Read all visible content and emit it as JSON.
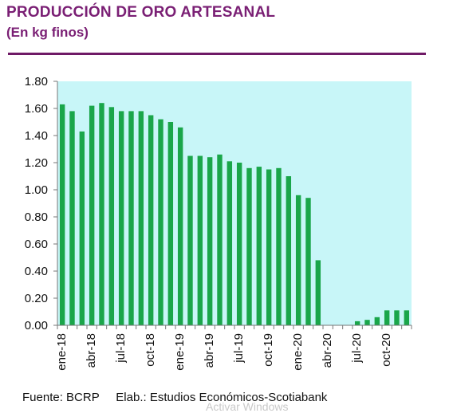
{
  "title": "PRODUCCIÓN DE ORO ARTESANAL",
  "subtitle": "(En kg finos)",
  "footer": {
    "source": "Fuente: BCRP",
    "elaboration": "Elab.: Estudios Económicos-Scotiabank"
  },
  "watermark": "Activar Windows",
  "colors": {
    "bar": "#1aa64a",
    "plot_background": "#c8f6f8",
    "title": "#7a1f74"
  },
  "chart_data": {
    "type": "bar",
    "title": "PRODUCCIÓN DE ORO ARTESANAL",
    "subtitle": "(En kg finos)",
    "xlabel": "",
    "ylabel": "",
    "ylim": [
      0,
      1.8
    ],
    "yticks": [
      "0.00",
      "0.20",
      "0.40",
      "0.60",
      "0.80",
      "1.00",
      "1.20",
      "1.40",
      "1.60",
      "1.80"
    ],
    "grid": false,
    "legend": "none",
    "categories": [
      "ene-18",
      "feb-18",
      "mar-18",
      "abr-18",
      "may-18",
      "jun-18",
      "jul-18",
      "ago-18",
      "sep-18",
      "oct-18",
      "nov-18",
      "dic-18",
      "ene-19",
      "feb-19",
      "mar-19",
      "abr-19",
      "may-19",
      "jun-19",
      "jul-19",
      "ago-19",
      "sep-19",
      "oct-19",
      "nov-19",
      "dic-19",
      "ene-20",
      "feb-20",
      "mar-20",
      "abr-20",
      "may-20",
      "jun-20",
      "jul-20",
      "ago-20",
      "sep-20",
      "oct-20",
      "nov-20",
      "dic-20"
    ],
    "xtick_labels": [
      {
        "index": 0,
        "label": "ene-18"
      },
      {
        "index": 3,
        "label": "abr-18"
      },
      {
        "index": 6,
        "label": "jul-18"
      },
      {
        "index": 9,
        "label": "oct-18"
      },
      {
        "index": 12,
        "label": "ene-19"
      },
      {
        "index": 15,
        "label": "abr-19"
      },
      {
        "index": 18,
        "label": "jul-19"
      },
      {
        "index": 21,
        "label": "oct-19"
      },
      {
        "index": 24,
        "label": "ene-20"
      },
      {
        "index": 27,
        "label": "abr-20"
      },
      {
        "index": 30,
        "label": "jul-20"
      },
      {
        "index": 33,
        "label": "oct-20"
      }
    ],
    "values": [
      1.63,
      1.58,
      1.43,
      1.62,
      1.64,
      1.61,
      1.58,
      1.58,
      1.58,
      1.55,
      1.52,
      1.5,
      1.46,
      1.25,
      1.25,
      1.24,
      1.26,
      1.21,
      1.2,
      1.16,
      1.17,
      1.15,
      1.16,
      1.1,
      0.96,
      0.94,
      0.48,
      0.0,
      0.0,
      0.0,
      0.03,
      0.04,
      0.06,
      0.11,
      0.11,
      0.11
    ]
  }
}
